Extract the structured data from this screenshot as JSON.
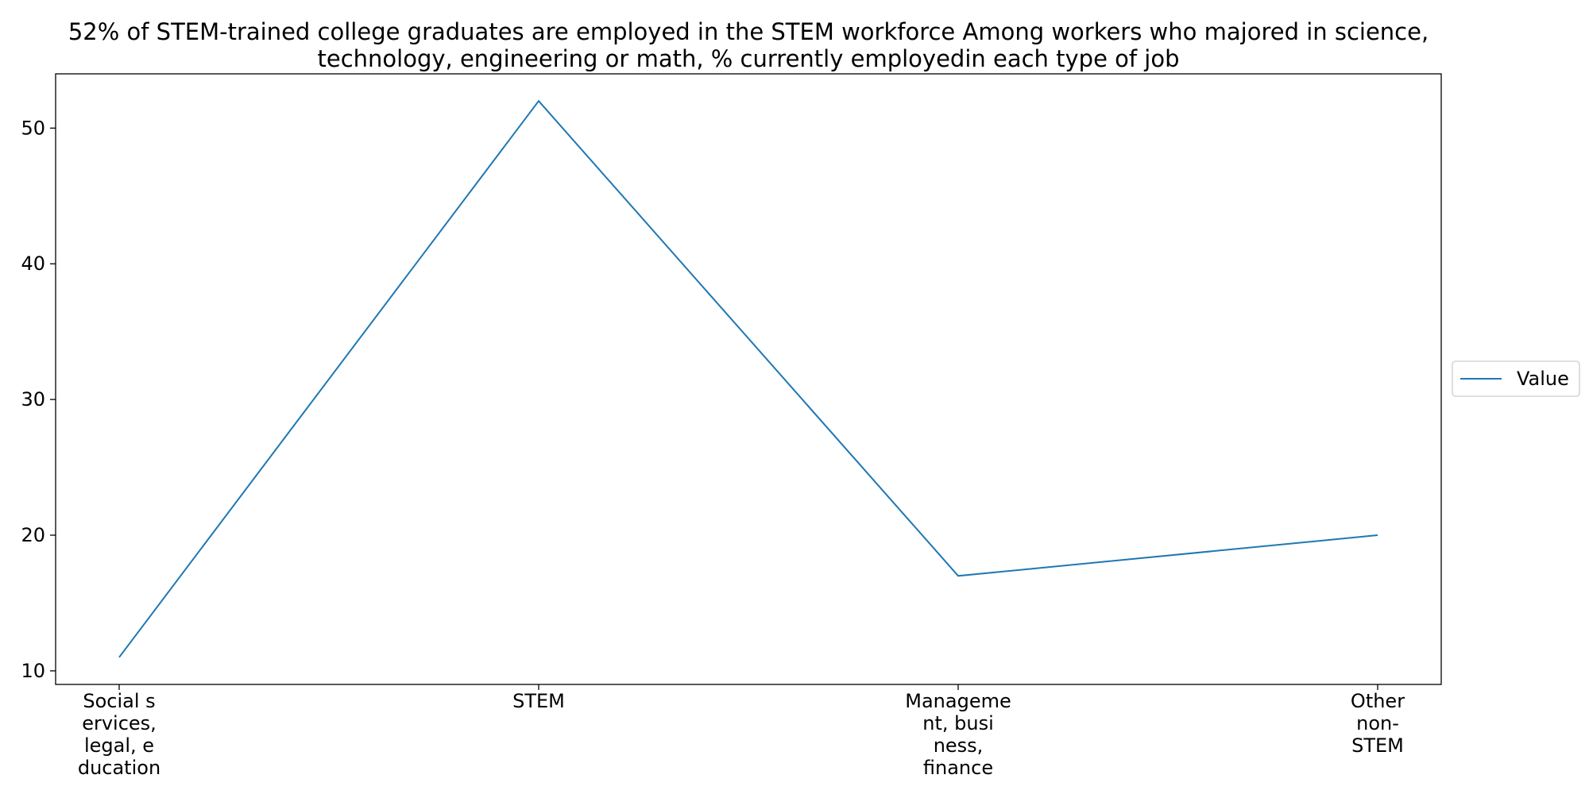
{
  "chart_data": {
    "type": "line",
    "title_lines": [
      "52% of STEM-trained college graduates are employed in the STEM workforce Among workers who majored in science,",
      "technology, engineering or math, % currently employedin each type of job"
    ],
    "categories": [
      "Social services, legal, education",
      "STEM",
      "Management, business, finance",
      "Other non-STEM"
    ],
    "category_label_lines": [
      [
        "Social s",
        "ervices,",
        "legal, e",
        "ducation"
      ],
      [
        "STEM"
      ],
      [
        "Manageme",
        "nt, busi",
        "ness,",
        "finance"
      ],
      [
        "Other",
        "non-",
        "STEM"
      ]
    ],
    "series": [
      {
        "name": "Value",
        "values": [
          11,
          52,
          17,
          20
        ],
        "color": "#1f77b4"
      }
    ],
    "ylim": [
      9,
      54
    ],
    "yticks": [
      10,
      20,
      30,
      40,
      50
    ],
    "xlabel": "",
    "ylabel": "",
    "grid": false,
    "legend_position": "right"
  }
}
